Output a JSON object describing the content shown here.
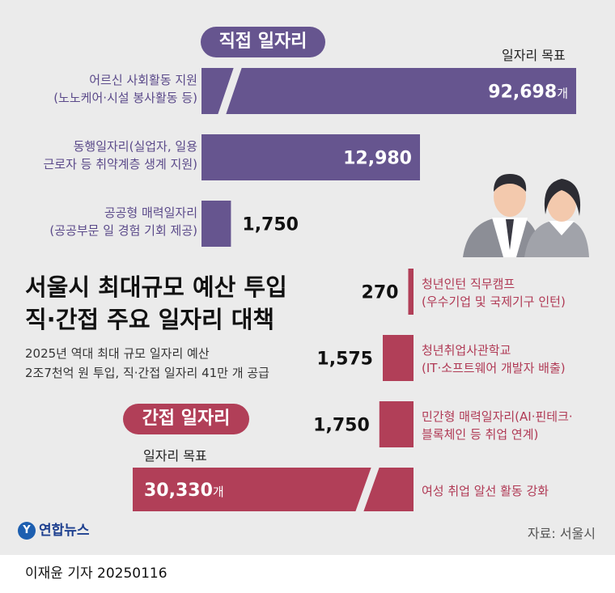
{
  "direct": {
    "title": "직접 일자리",
    "target_label": "일자리 목표",
    "unit": "개",
    "items": [
      {
        "line1": "어르신 사회활동 지원",
        "line2": "(노노케어·시설 봉사활동 등)"
      },
      {
        "line1": "동행일자리(실업자, 일용",
        "line2": "근로자 등 취약계층 생계 지원)"
      },
      {
        "line1": "공공형 매력일자리",
        "line2": "(공공부문 일 경험 기회 제공)"
      }
    ]
  },
  "indirect": {
    "title": "간접 일자리",
    "target_label": "일자리 목표",
    "unit": "개",
    "items": [
      {
        "line1": "청년인턴 직무캠프",
        "line2": "(우수기업 및 국제기구 인턴)"
      },
      {
        "line1": "청년취업사관학교",
        "line2": "(IT·소프트웨어 개발자 배출)"
      },
      {
        "line1": "민간형 매력일자리(AI·핀테크·",
        "line2": "블록체인 등 취업 연계)"
      },
      {
        "line1": "여성 취업 알선 활동 강화",
        "line2": ""
      }
    ]
  },
  "headline": {
    "line1": "서울시 최대규모 예산 투입",
    "line2": "직·간접 주요 일자리 대책"
  },
  "subtitle": {
    "line1": "2025년 역대 최대 규모 일자리 예산",
    "line2": "2조7천억 원 투입, 직·간접 일자리 41만 개 공급"
  },
  "source": "자료: 서울시",
  "logo": "연합뉴스",
  "credit": "이재윤 기자  20250116",
  "colors": {
    "direct": "#66558f",
    "indirect": "#b13f58",
    "panel": "#ebebeb"
  },
  "chart_data": [
    {
      "type": "bar",
      "orientation": "horizontal",
      "categories": [
        "어르신 사회활동 지원",
        "동행일자리",
        "공공형 매력일자리"
      ],
      "values": [
        92698,
        12980,
        1750
      ],
      "value_labels": [
        "92,698",
        "12,980",
        "1,750"
      ],
      "axis_break_on": [
        "어르신 사회활동 지원"
      ]
    },
    {
      "type": "bar",
      "orientation": "horizontal",
      "categories": [
        "청년인턴 직무캠프",
        "청년취업사관학교",
        "민간형 매력일자리",
        "여성 취업 알선 활동 강화"
      ],
      "values": [
        270,
        1575,
        1750,
        30330
      ],
      "value_labels": [
        "270",
        "1,575",
        "1,750",
        "30,330"
      ],
      "axis_break_on": [
        "여성 취업 알선 활동 강화"
      ]
    }
  ]
}
